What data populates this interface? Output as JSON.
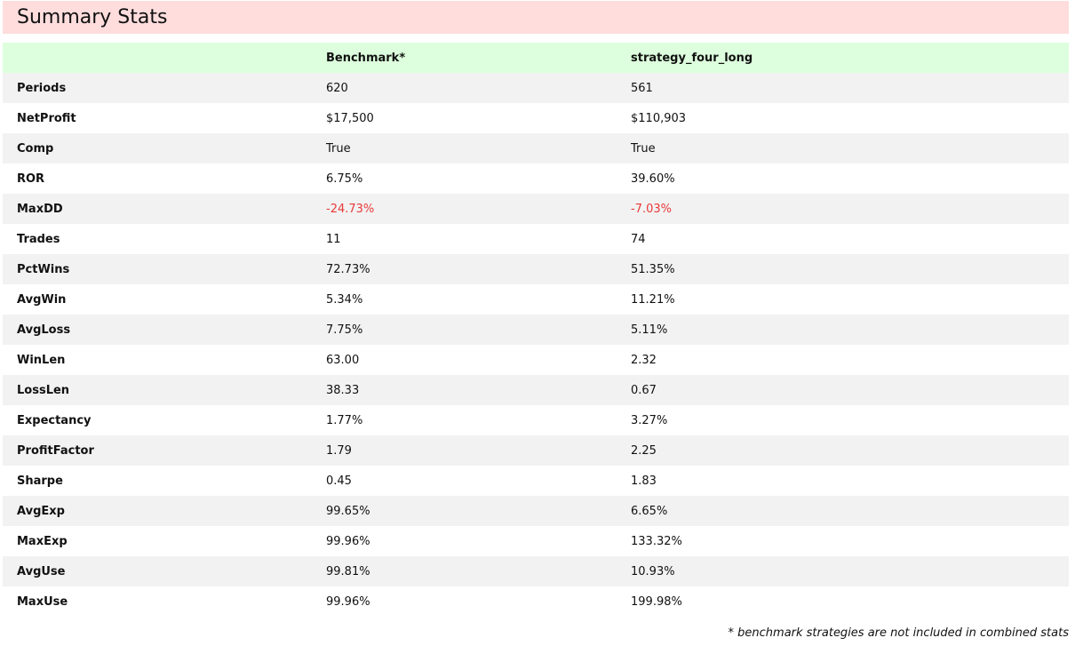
{
  "title": "Summary Stats",
  "table": {
    "headers": [
      "",
      "Benchmark*",
      "strategy_four_long"
    ],
    "rows": [
      {
        "label": "Periods",
        "benchmark": "620",
        "strategy": "561"
      },
      {
        "label": "NetProfit",
        "benchmark": "$17,500",
        "strategy": "$110,903"
      },
      {
        "label": "Comp",
        "benchmark": "True",
        "strategy": "True"
      },
      {
        "label": "ROR",
        "benchmark": "6.75%",
        "strategy": "39.60%"
      },
      {
        "label": "MaxDD",
        "benchmark": "-24.73%",
        "strategy": "-7.03%",
        "negative": true
      },
      {
        "label": "Trades",
        "benchmark": "11",
        "strategy": "74"
      },
      {
        "label": "PctWins",
        "benchmark": "72.73%",
        "strategy": "51.35%"
      },
      {
        "label": "AvgWin",
        "benchmark": "5.34%",
        "strategy": "11.21%"
      },
      {
        "label": "AvgLoss",
        "benchmark": "7.75%",
        "strategy": "5.11%"
      },
      {
        "label": "WinLen",
        "benchmark": "63.00",
        "strategy": "2.32"
      },
      {
        "label": "LossLen",
        "benchmark": "38.33",
        "strategy": "0.67"
      },
      {
        "label": "Expectancy",
        "benchmark": "1.77%",
        "strategy": "3.27%"
      },
      {
        "label": "ProfitFactor",
        "benchmark": "1.79",
        "strategy": "2.25"
      },
      {
        "label": "Sharpe",
        "benchmark": "0.45",
        "strategy": "1.83"
      },
      {
        "label": "AvgExp",
        "benchmark": "99.65%",
        "strategy": "6.65%"
      },
      {
        "label": "MaxExp",
        "benchmark": "99.96%",
        "strategy": "133.32%"
      },
      {
        "label": "AvgUse",
        "benchmark": "99.81%",
        "strategy": "10.93%"
      },
      {
        "label": "MaxUse",
        "benchmark": "99.96%",
        "strategy": "199.98%"
      }
    ]
  },
  "footnote": "* benchmark strategies are not included in combined stats",
  "colors": {
    "title_bg": "#ffdddd",
    "header_bg": "#ddffdd",
    "stripe_bg": "#f2f2f2",
    "negative": "#e83a3a"
  }
}
